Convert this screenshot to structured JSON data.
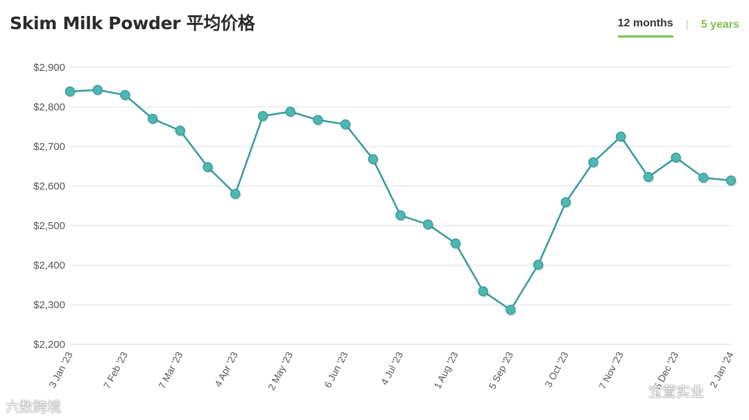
{
  "header": {
    "title": "Skim Milk Powder 平均价格",
    "tabs": [
      {
        "label": "12 months",
        "active": true
      },
      {
        "label": "5 years",
        "active": false
      }
    ]
  },
  "colors": {
    "line": "#3a9c9a",
    "marker_fill": "#4db8b2",
    "grid": "#e2e2e2",
    "accent": "#7cc24a"
  },
  "watermarks": {
    "left": "六数跨境",
    "right": "宝萱实业"
  },
  "chart_data": {
    "type": "line",
    "title": "Skim Milk Powder 平均价格",
    "xlabel": "",
    "ylabel": "",
    "ylim": [
      2200,
      2900
    ],
    "yticks": [
      2200,
      2300,
      2400,
      2500,
      2600,
      2700,
      2800,
      2900
    ],
    "ytick_labels": [
      "$2,200",
      "$2,300",
      "$2,400",
      "$2,500",
      "$2,600",
      "$2,700",
      "$2,800",
      "$2,900"
    ],
    "grid": true,
    "legend": "none",
    "x_labels": [
      "3 Jan '23",
      "7 Feb '23",
      "7 Mar '23",
      "4 Apr '23",
      "2 May '23",
      "6 Jun '23",
      "4 Jul '23",
      "1 Aug '23",
      "5 Sep '23",
      "3 Oct '23",
      "7 Nov '23",
      "5 Dec '23",
      "2 Jan '24"
    ],
    "x_label_positions": [
      0,
      2,
      4,
      6,
      8,
      10,
      12,
      14,
      16,
      18,
      20,
      22,
      24
    ],
    "series": [
      {
        "values": [
          2839,
          2843,
          2830,
          2770,
          2740,
          2648,
          2580,
          2777,
          2788,
          2767,
          2756,
          2668,
          2526,
          2503,
          2455,
          2334,
          2287,
          2401,
          2559,
          2660,
          2725,
          2623,
          2672,
          2621,
          2614
        ]
      }
    ]
  }
}
